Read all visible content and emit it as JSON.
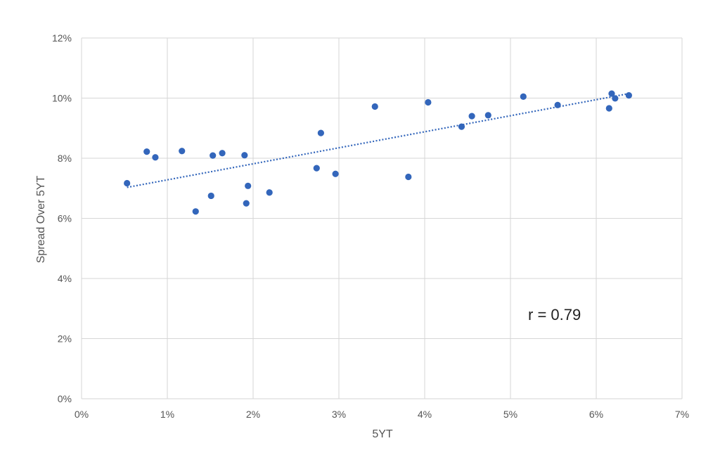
{
  "chart_data": {
    "type": "scatter",
    "title": "",
    "xlabel": "5YT",
    "ylabel": "Spread Over 5YT",
    "xlim": [
      0,
      7
    ],
    "ylim": [
      0,
      12
    ],
    "x_ticks": [
      0,
      1,
      2,
      3,
      4,
      5,
      6,
      7
    ],
    "x_tick_labels": [
      "0%",
      "1%",
      "2%",
      "3%",
      "4%",
      "5%",
      "6%",
      "7%"
    ],
    "y_ticks": [
      0,
      2,
      4,
      6,
      8,
      10,
      12
    ],
    "y_tick_labels": [
      "0%",
      "2%",
      "4%",
      "6%",
      "8%",
      "10%",
      "12%"
    ],
    "grid": true,
    "legend": "none",
    "point_color": "#3366bb",
    "trendline": {
      "style": "dotted",
      "color": "#3366bb",
      "x": [
        0.53,
        6.38
      ],
      "y": [
        7.03,
        10.15
      ]
    },
    "annotation": "r = 0.79",
    "points": [
      {
        "x": 0.53,
        "y": 7.17
      },
      {
        "x": 0.76,
        "y": 8.22
      },
      {
        "x": 0.86,
        "y": 8.03
      },
      {
        "x": 1.17,
        "y": 8.24
      },
      {
        "x": 1.33,
        "y": 6.23
      },
      {
        "x": 1.51,
        "y": 6.75
      },
      {
        "x": 1.53,
        "y": 8.09
      },
      {
        "x": 1.64,
        "y": 8.17
      },
      {
        "x": 1.9,
        "y": 8.1
      },
      {
        "x": 1.92,
        "y": 6.5
      },
      {
        "x": 1.94,
        "y": 7.08
      },
      {
        "x": 2.19,
        "y": 6.86
      },
      {
        "x": 2.74,
        "y": 7.67
      },
      {
        "x": 2.79,
        "y": 8.84
      },
      {
        "x": 2.96,
        "y": 7.48
      },
      {
        "x": 3.42,
        "y": 9.72
      },
      {
        "x": 3.81,
        "y": 7.38
      },
      {
        "x": 4.04,
        "y": 9.86
      },
      {
        "x": 4.43,
        "y": 9.05
      },
      {
        "x": 4.55,
        "y": 9.4
      },
      {
        "x": 4.74,
        "y": 9.43
      },
      {
        "x": 5.15,
        "y": 10.05
      },
      {
        "x": 5.55,
        "y": 9.77
      },
      {
        "x": 6.15,
        "y": 9.66
      },
      {
        "x": 6.18,
        "y": 10.15
      },
      {
        "x": 6.22,
        "y": 9.99
      },
      {
        "x": 6.38,
        "y": 10.09
      }
    ]
  }
}
